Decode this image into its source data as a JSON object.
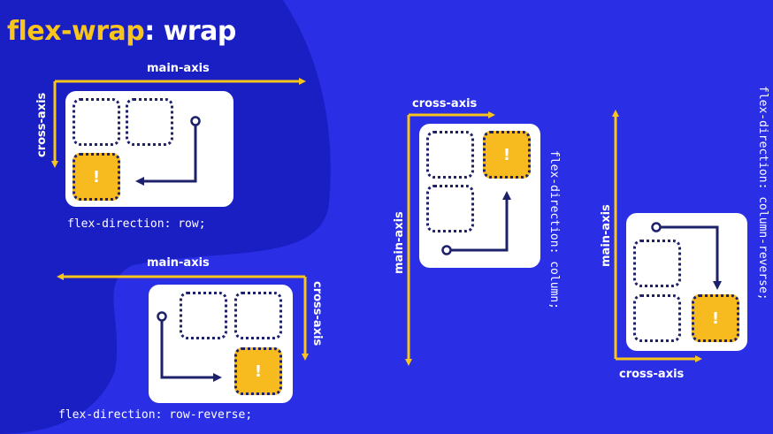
{
  "title": {
    "part1": "flex-wrap",
    "part2": ": wrap"
  },
  "axis_labels": {
    "main_axis": "main-axis",
    "cross_axis": "cross-axis"
  },
  "item_mark": "!",
  "examples": [
    {
      "code": "flex-direction: row;"
    },
    {
      "code": "flex-direction: row-reverse;"
    },
    {
      "code": "flex-direction: column;"
    },
    {
      "code": "flex-direction: column-reverse;"
    }
  ],
  "colors": {
    "background": "#2a2fe6",
    "background_dark": "#1a1fc4",
    "accent_yellow": "#f7c51c",
    "navy": "#1c2169"
  }
}
